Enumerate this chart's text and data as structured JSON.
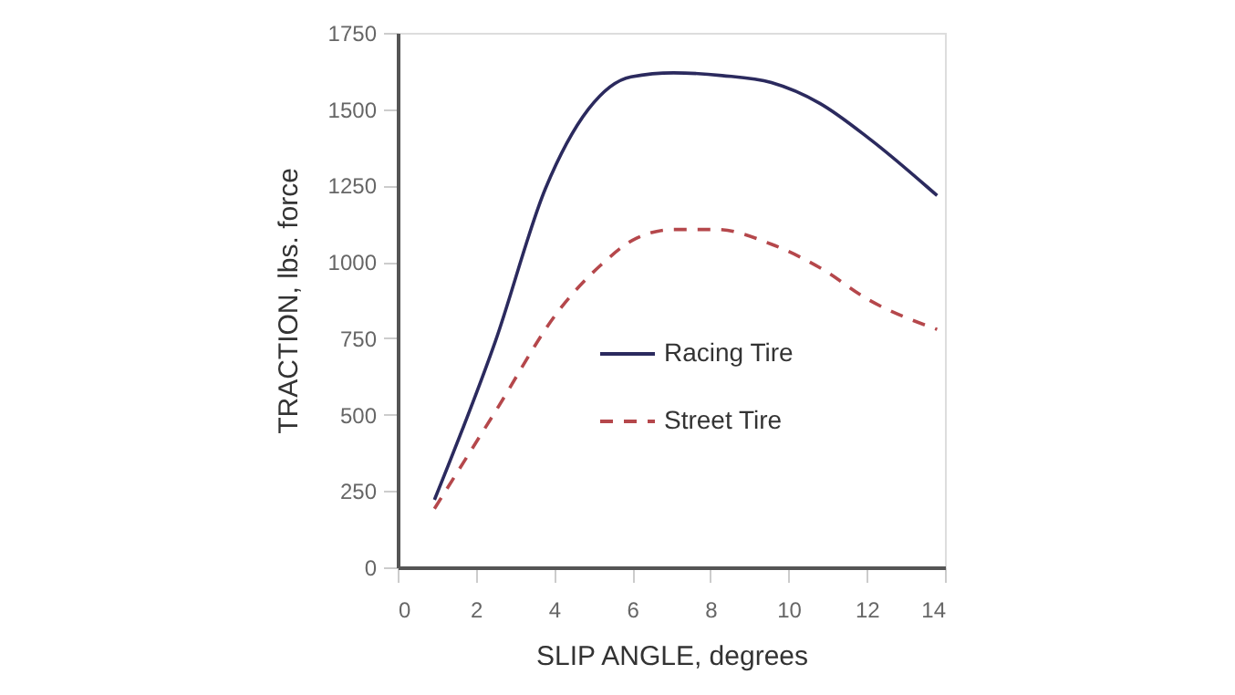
{
  "chart_data": {
    "type": "line",
    "xlabel": "SLIP ANGLE, degrees",
    "ylabel": "TRACTION, lbs. force",
    "xlim": [
      0,
      14
    ],
    "xticks": [
      0,
      2,
      4,
      6,
      8,
      10,
      12,
      14
    ],
    "ylim": [
      0,
      1750
    ],
    "yticks": [
      0,
      250,
      500,
      750,
      1000,
      1250,
      1500,
      1750
    ],
    "grid": false,
    "legend": "center",
    "marker": "none",
    "series": [
      {
        "name": "Racing Tire",
        "color": "#2b2a5e",
        "line_style": "solid",
        "x": [
          0.94,
          2.5,
          3.78,
          4.88,
          5.97,
          7.06,
          8.3,
          9.56,
          10.8,
          12.06,
          13.8
        ],
        "values": [
          221,
          740,
          1240,
          1500,
          1606,
          1619,
          1610,
          1587,
          1519,
          1404,
          1217
        ]
      },
      {
        "name": "Street Tire",
        "color": "#b5474b",
        "line_style": "dashed",
        "x": [
          0.94,
          2.5,
          4.1,
          5.2,
          6.1,
          7.06,
          8.16,
          9.56,
          10.8,
          12.06,
          13.8
        ],
        "values": [
          192,
          510,
          837,
          990,
          1077,
          1106,
          1106,
          1058,
          981,
          875,
          779
        ]
      }
    ]
  }
}
